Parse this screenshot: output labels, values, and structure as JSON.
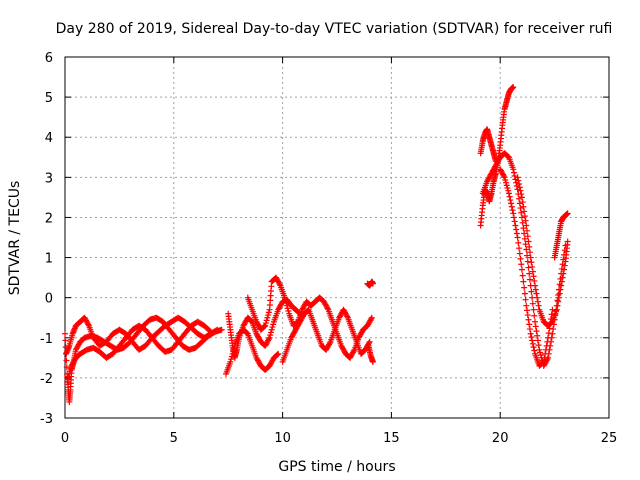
{
  "chart_data": {
    "type": "scatter",
    "title": "Day 280 of 2019, Sidereal Day-to-day VTEC variation (SDTVAR) for receiver rufi",
    "xlabel": "GPS time / hours",
    "ylabel": "SDTVAR / TECUs",
    "xlim": [
      0,
      25
    ],
    "ylim": [
      -3,
      6
    ],
    "xticks": [
      0,
      5,
      10,
      15,
      20,
      25
    ],
    "yticks": [
      -3,
      -2,
      -1,
      0,
      1,
      2,
      3,
      4,
      5,
      6
    ],
    "grid": true,
    "marker": "+",
    "series": [
      {
        "name": "SDTVAR",
        "color": "#ff0000",
        "segments": [
          [
            [
              0.0,
              -0.9
            ],
            [
              0.1,
              -1.9
            ],
            [
              0.15,
              -2.3
            ],
            [
              0.2,
              -2.6
            ],
            [
              0.25,
              -2.3
            ],
            [
              0.3,
              -1.8
            ],
            [
              0.4,
              -1.6
            ],
            [
              0.5,
              -1.3
            ],
            [
              0.7,
              -1.1
            ],
            [
              0.9,
              -1.0
            ],
            [
              1.2,
              -0.95
            ],
            [
              1.5,
              -1.0
            ],
            [
              1.8,
              -1.1
            ],
            [
              2.1,
              -1.2
            ],
            [
              2.4,
              -1.3
            ],
            [
              2.7,
              -1.25
            ],
            [
              3.0,
              -1.1
            ],
            [
              3.3,
              -0.9
            ],
            [
              3.6,
              -0.7
            ],
            [
              3.9,
              -0.55
            ],
            [
              4.2,
              -0.5
            ],
            [
              4.5,
              -0.6
            ],
            [
              4.8,
              -0.8
            ],
            [
              5.1,
              -1.0
            ],
            [
              5.4,
              -1.2
            ],
            [
              5.7,
              -1.3
            ],
            [
              6.0,
              -1.25
            ],
            [
              6.3,
              -1.1
            ],
            [
              6.6,
              -0.95
            ],
            [
              6.9,
              -0.85
            ],
            [
              7.2,
              -0.8
            ]
          ],
          [
            [
              0.05,
              -1.4
            ],
            [
              0.2,
              -1.2
            ],
            [
              0.35,
              -0.9
            ],
            [
              0.5,
              -0.7
            ],
            [
              0.7,
              -0.6
            ],
            [
              0.9,
              -0.5
            ],
            [
              1.1,
              -0.7
            ],
            [
              1.3,
              -1.0
            ],
            [
              1.6,
              -1.2
            ],
            [
              1.9,
              -1.1
            ],
            [
              2.2,
              -0.9
            ],
            [
              2.5,
              -0.8
            ],
            [
              2.8,
              -0.9
            ],
            [
              3.1,
              -1.1
            ],
            [
              3.4,
              -1.3
            ],
            [
              3.7,
              -1.2
            ],
            [
              4.0,
              -1.0
            ],
            [
              4.3,
              -0.85
            ],
            [
              4.6,
              -0.7
            ],
            [
              4.9,
              -0.6
            ],
            [
              5.2,
              -0.5
            ],
            [
              5.5,
              -0.6
            ],
            [
              5.8,
              -0.75
            ],
            [
              6.1,
              -0.9
            ],
            [
              6.4,
              -1.0
            ],
            [
              6.7,
              -0.9
            ],
            [
              7.0,
              -0.8
            ]
          ],
          [
            [
              0.1,
              -2.1
            ],
            [
              0.3,
              -1.7
            ],
            [
              0.5,
              -1.5
            ],
            [
              0.7,
              -1.4
            ],
            [
              1.0,
              -1.3
            ],
            [
              1.3,
              -1.25
            ],
            [
              1.6,
              -1.35
            ],
            [
              1.9,
              -1.5
            ],
            [
              2.2,
              -1.4
            ],
            [
              2.5,
              -1.2
            ],
            [
              2.8,
              -1.0
            ],
            [
              3.1,
              -0.8
            ],
            [
              3.4,
              -0.7
            ],
            [
              3.7,
              -0.8
            ],
            [
              4.0,
              -1.0
            ],
            [
              4.3,
              -1.2
            ],
            [
              4.6,
              -1.35
            ],
            [
              4.9,
              -1.3
            ],
            [
              5.2,
              -1.1
            ],
            [
              5.5,
              -0.9
            ],
            [
              5.8,
              -0.7
            ],
            [
              6.1,
              -0.6
            ],
            [
              6.4,
              -0.7
            ],
            [
              6.7,
              -0.85
            ]
          ],
          [
            [
              7.5,
              -0.4
            ],
            [
              7.6,
              -0.8
            ],
            [
              7.7,
              -1.2
            ],
            [
              7.8,
              -1.5
            ],
            [
              7.9,
              -1.3
            ],
            [
              8.0,
              -1.0
            ],
            [
              8.2,
              -0.7
            ],
            [
              8.4,
              -0.5
            ],
            [
              8.6,
              -0.6
            ],
            [
              8.8,
              -0.9
            ],
            [
              9.0,
              -1.1
            ],
            [
              9.2,
              -1.2
            ],
            [
              9.4,
              -1.0
            ],
            [
              9.6,
              -0.6
            ],
            [
              9.8,
              -0.3
            ],
            [
              10.0,
              -0.1
            ],
            [
              10.2,
              -0.05
            ],
            [
              10.4,
              -0.2
            ],
            [
              10.6,
              -0.3
            ],
            [
              10.8,
              -0.4
            ]
          ],
          [
            [
              7.4,
              -1.9
            ],
            [
              7.6,
              -1.6
            ],
            [
              7.8,
              -1.2
            ],
            [
              8.0,
              -0.9
            ],
            [
              8.2,
              -0.8
            ],
            [
              8.4,
              -0.9
            ],
            [
              8.6,
              -1.2
            ],
            [
              8.8,
              -1.5
            ],
            [
              9.0,
              -1.7
            ],
            [
              9.2,
              -1.8
            ],
            [
              9.4,
              -1.7
            ],
            [
              9.6,
              -1.5
            ],
            [
              9.8,
              -1.4
            ]
          ],
          [
            [
              8.4,
              0.0
            ],
            [
              8.6,
              -0.3
            ],
            [
              8.8,
              -0.6
            ],
            [
              9.0,
              -0.8
            ],
            [
              9.2,
              -0.7
            ],
            [
              9.4,
              -0.3
            ],
            [
              9.5,
              0.4
            ],
            [
              9.7,
              0.5
            ],
            [
              9.9,
              0.3
            ],
            [
              10.1,
              0.0
            ],
            [
              10.3,
              -0.4
            ],
            [
              10.5,
              -0.7
            ],
            [
              10.7,
              -0.6
            ],
            [
              10.9,
              -0.3
            ],
            [
              11.1,
              -0.1
            ],
            [
              11.3,
              -0.2
            ],
            [
              11.5,
              -0.1
            ],
            [
              11.7,
              0.0
            ],
            [
              11.9,
              -0.1
            ],
            [
              12.1,
              -0.3
            ],
            [
              12.3,
              -0.6
            ],
            [
              12.5,
              -0.9
            ],
            [
              12.7,
              -1.2
            ],
            [
              12.9,
              -1.4
            ],
            [
              13.1,
              -1.5
            ],
            [
              13.3,
              -1.3
            ],
            [
              13.5,
              -1.0
            ],
            [
              13.7,
              -0.8
            ],
            [
              13.9,
              -0.7
            ],
            [
              14.1,
              -0.5
            ]
          ],
          [
            [
              10.0,
              -1.6
            ],
            [
              10.2,
              -1.3
            ],
            [
              10.4,
              -1.0
            ],
            [
              10.6,
              -0.8
            ],
            [
              10.8,
              -0.6
            ],
            [
              11.0,
              -0.4
            ],
            [
              11.2,
              -0.3
            ],
            [
              11.4,
              -0.6
            ],
            [
              11.6,
              -0.9
            ],
            [
              11.8,
              -1.2
            ],
            [
              12.0,
              -1.3
            ],
            [
              12.2,
              -1.1
            ],
            [
              12.4,
              -0.8
            ],
            [
              12.6,
              -0.5
            ],
            [
              12.8,
              -0.3
            ],
            [
              13.0,
              -0.5
            ],
            [
              13.2,
              -0.8
            ],
            [
              13.4,
              -1.1
            ],
            [
              13.6,
              -1.4
            ],
            [
              13.8,
              -1.3
            ],
            [
              14.0,
              -1.1
            ]
          ],
          [
            [
              13.9,
              0.35
            ],
            [
              14.0,
              0.3
            ],
            [
              14.1,
              0.4
            ],
            [
              14.15,
              0.35
            ]
          ],
          [
            [
              13.95,
              -1.2
            ],
            [
              14.05,
              -1.45
            ],
            [
              14.15,
              -1.6
            ]
          ],
          [
            [
              19.1,
              1.8
            ],
            [
              19.2,
              2.3
            ],
            [
              19.3,
              2.7
            ],
            [
              19.4,
              2.6
            ],
            [
              19.5,
              2.4
            ],
            [
              19.6,
              2.6
            ],
            [
              19.7,
              2.9
            ],
            [
              19.8,
              3.1
            ],
            [
              19.9,
              3.4
            ],
            [
              20.0,
              3.8
            ],
            [
              20.1,
              4.3
            ],
            [
              20.2,
              4.7
            ],
            [
              20.3,
              4.9
            ],
            [
              20.4,
              5.1
            ],
            [
              20.5,
              5.2
            ],
            [
              20.6,
              5.25
            ]
          ],
          [
            [
              19.1,
              3.6
            ],
            [
              19.2,
              3.9
            ],
            [
              19.3,
              4.1
            ],
            [
              19.4,
              4.2
            ],
            [
              19.5,
              4.0
            ],
            [
              19.6,
              3.8
            ],
            [
              19.7,
              3.6
            ],
            [
              19.8,
              3.4
            ]
          ],
          [
            [
              19.2,
              2.6
            ],
            [
              19.4,
              2.9
            ],
            [
              19.6,
              3.1
            ],
            [
              19.8,
              3.3
            ],
            [
              20.0,
              3.5
            ],
            [
              20.2,
              3.6
            ],
            [
              20.4,
              3.5
            ],
            [
              20.6,
              3.2
            ],
            [
              20.8,
              2.7
            ],
            [
              21.0,
              2.0
            ],
            [
              21.2,
              1.2
            ],
            [
              21.4,
              0.3
            ],
            [
              21.6,
              -0.6
            ],
            [
              21.8,
              -1.3
            ],
            [
              22.0,
              -1.7
            ],
            [
              22.2,
              -1.5
            ],
            [
              22.4,
              -0.9
            ],
            [
              22.6,
              -0.2
            ],
            [
              22.8,
              0.6
            ],
            [
              23.0,
              1.3
            ]
          ],
          [
            [
              20.0,
              3.2
            ],
            [
              20.2,
              3.0
            ],
            [
              20.4,
              2.6
            ],
            [
              20.6,
              2.1
            ],
            [
              20.8,
              1.5
            ],
            [
              21.0,
              0.7
            ],
            [
              21.2,
              -0.2
            ],
            [
              21.4,
              -0.9
            ],
            [
              21.6,
              -1.4
            ],
            [
              21.8,
              -1.7
            ],
            [
              22.0,
              -1.6
            ],
            [
              22.2,
              -1.0
            ],
            [
              22.4,
              -0.3
            ]
          ],
          [
            [
              20.8,
              3.0
            ],
            [
              21.0,
              2.5
            ],
            [
              21.2,
              1.8
            ],
            [
              21.4,
              1.0
            ],
            [
              21.6,
              0.3
            ],
            [
              21.8,
              -0.3
            ],
            [
              22.0,
              -0.6
            ],
            [
              22.2,
              -0.7
            ],
            [
              22.4,
              -0.6
            ],
            [
              22.6,
              -0.3
            ],
            [
              22.8,
              0.3
            ],
            [
              23.0,
              0.9
            ],
            [
              23.1,
              1.4
            ]
          ],
          [
            [
              22.5,
              1.0
            ],
            [
              22.6,
              1.3
            ],
            [
              22.7,
              1.6
            ],
            [
              22.8,
              1.9
            ],
            [
              22.9,
              2.0
            ],
            [
              23.0,
              2.05
            ],
            [
              23.1,
              2.1
            ]
          ]
        ]
      }
    ]
  }
}
